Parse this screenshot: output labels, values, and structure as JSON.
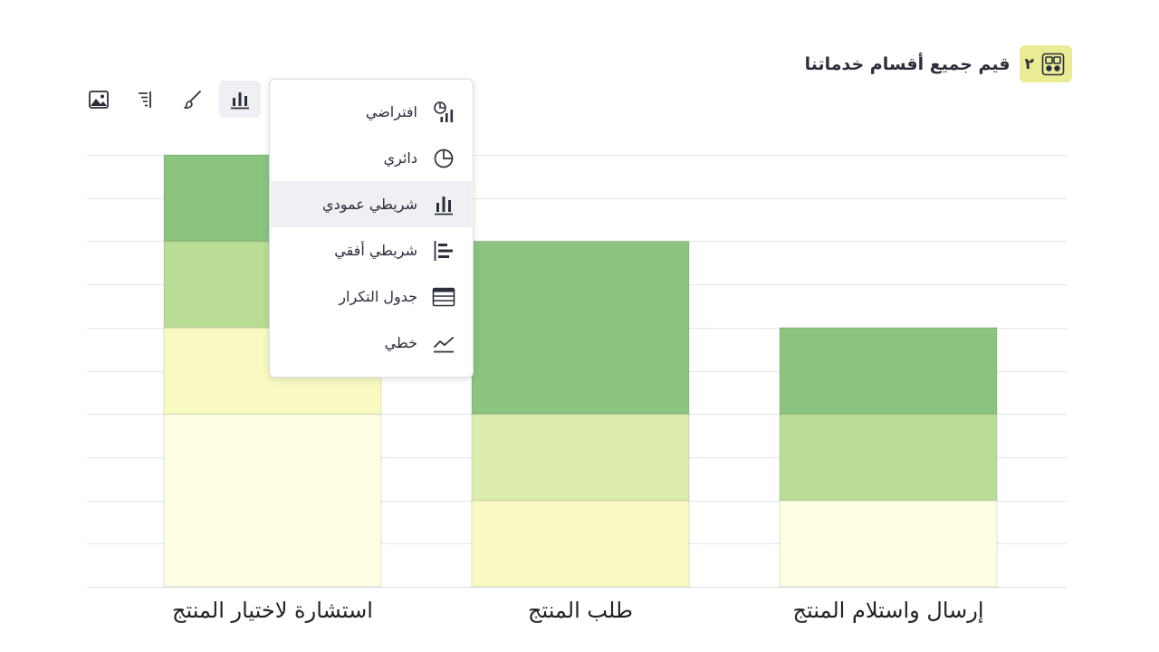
{
  "header": {
    "question_number": "٢",
    "title": "قيم جميع أقسام خدماتنا"
  },
  "toolbar": {
    "items": [
      {
        "name": "image-icon"
      },
      {
        "name": "sort-lines-icon"
      },
      {
        "name": "brush-icon"
      },
      {
        "name": "bar-chart-icon",
        "active": true
      }
    ]
  },
  "dropdown": {
    "items": [
      {
        "label": "افتراضي",
        "icon": "default-chart-icon"
      },
      {
        "label": "دائري",
        "icon": "pie-chart-icon"
      },
      {
        "label": "شريطي عمودي",
        "icon": "vertical-bar-icon",
        "selected": true
      },
      {
        "label": "شريطي أفقي",
        "icon": "horizontal-bar-icon"
      },
      {
        "label": "جدول التكرار",
        "icon": "table-icon"
      },
      {
        "label": "خطي",
        "icon": "line-chart-icon"
      }
    ]
  },
  "colors": {
    "accent_badge": "#e9ec95",
    "levels": [
      "#fefee4",
      "#f8fac2",
      "#dcecaa",
      "#badd95",
      "#8ac47f"
    ]
  },
  "chart_data": {
    "type": "bar",
    "stacked": true,
    "categories": [
      "استشارة لاختيار المنتج",
      "طلب المنتج",
      "إرسال واستلام المنتج"
    ],
    "series": [
      {
        "values": [
          4,
          0,
          2
        ]
      },
      {
        "values": [
          2,
          2,
          0
        ]
      },
      {
        "values": [
          0,
          2,
          0
        ]
      },
      {
        "values": [
          2,
          0,
          2
        ]
      },
      {
        "values": [
          2,
          4,
          2
        ]
      }
    ],
    "ylim": [
      0,
      10
    ],
    "grid": true
  }
}
